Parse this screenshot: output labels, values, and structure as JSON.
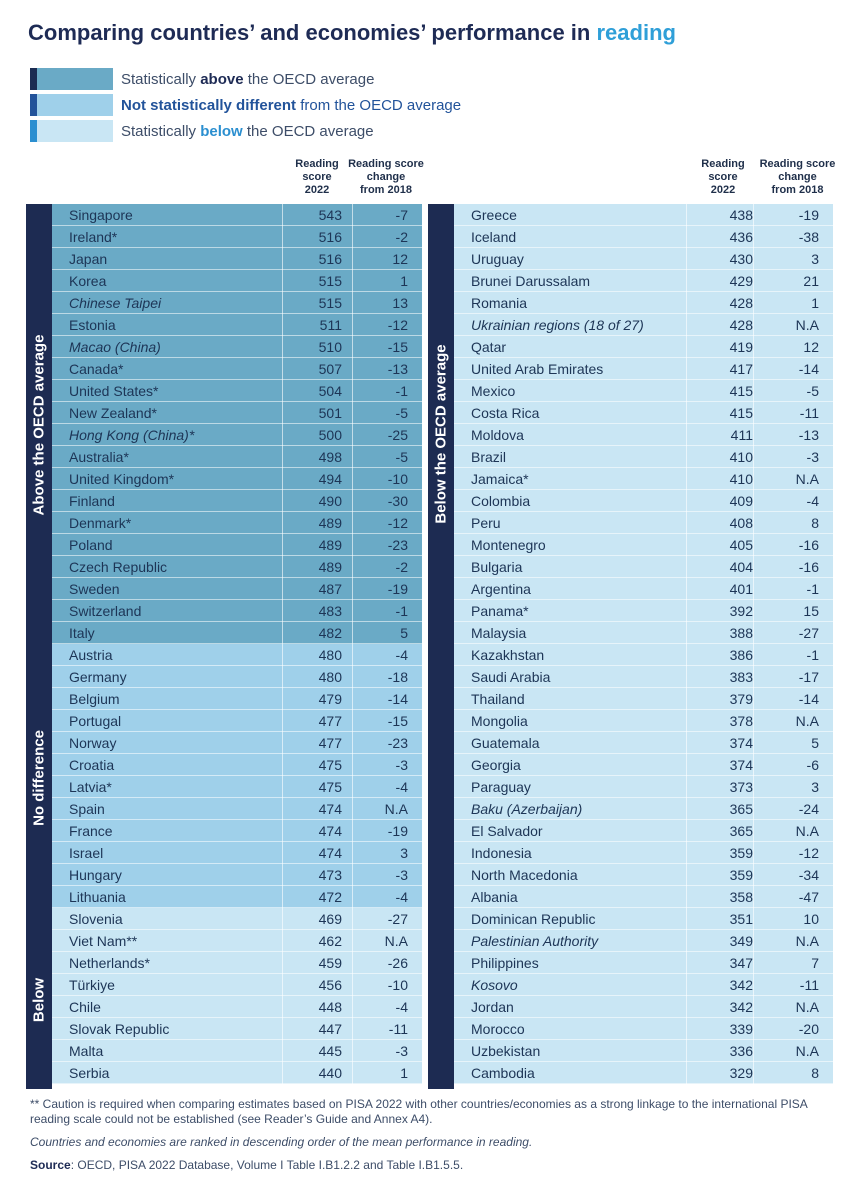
{
  "title": {
    "main": "Comparing countries’ and economies’ performance in",
    "highlight": "reading"
  },
  "legend": {
    "above": {
      "pre": "Statistically ",
      "bold": "above",
      "post": " the OECD average"
    },
    "nd": {
      "bold": "Not statistically different",
      "post": " from the OECD average"
    },
    "below": {
      "pre": "Statistically ",
      "bold": "below",
      "post": " the OECD average"
    }
  },
  "column_headers": {
    "score": [
      "Reading",
      "score",
      "2022"
    ],
    "change": [
      "Reading score",
      "change",
      "from 2018"
    ]
  },
  "band_labels": {
    "left_above": "Above the OECD average",
    "left_nd": "No difference",
    "left_below": "Below",
    "right_below": "Below the OECD average"
  },
  "left_table": [
    {
      "country": "Singapore",
      "score": "543",
      "change": "-7",
      "group": "above",
      "italic": false
    },
    {
      "country": "Ireland*",
      "score": "516",
      "change": "-2",
      "group": "above",
      "italic": false
    },
    {
      "country": "Japan",
      "score": "516",
      "change": "12",
      "group": "above",
      "italic": false
    },
    {
      "country": "Korea",
      "score": "515",
      "change": "1",
      "group": "above",
      "italic": false
    },
    {
      "country": "Chinese Taipei",
      "score": "515",
      "change": "13",
      "group": "above",
      "italic": true
    },
    {
      "country": "Estonia",
      "score": "511",
      "change": "-12",
      "group": "above",
      "italic": false
    },
    {
      "country": "Macao (China)",
      "score": "510",
      "change": "-15",
      "group": "above",
      "italic": true
    },
    {
      "country": "Canada*",
      "score": "507",
      "change": "-13",
      "group": "above",
      "italic": false
    },
    {
      "country": "United States*",
      "score": "504",
      "change": "-1",
      "group": "above",
      "italic": false
    },
    {
      "country": "New Zealand*",
      "score": "501",
      "change": "-5",
      "group": "above",
      "italic": false
    },
    {
      "country": "Hong Kong (China)*",
      "score": "500",
      "change": "-25",
      "group": "above",
      "italic": true
    },
    {
      "country": "Australia*",
      "score": "498",
      "change": "-5",
      "group": "above",
      "italic": false
    },
    {
      "country": "United Kingdom*",
      "score": "494",
      "change": "-10",
      "group": "above",
      "italic": false
    },
    {
      "country": "Finland",
      "score": "490",
      "change": "-30",
      "group": "above",
      "italic": false
    },
    {
      "country": "Denmark*",
      "score": "489",
      "change": "-12",
      "group": "above",
      "italic": false
    },
    {
      "country": "Poland",
      "score": "489",
      "change": "-23",
      "group": "above",
      "italic": false
    },
    {
      "country": "Czech Republic",
      "score": "489",
      "change": "-2",
      "group": "above",
      "italic": false
    },
    {
      "country": "Sweden",
      "score": "487",
      "change": "-19",
      "group": "above",
      "italic": false
    },
    {
      "country": "Switzerland",
      "score": "483",
      "change": "-1",
      "group": "above",
      "italic": false
    },
    {
      "country": "Italy",
      "score": "482",
      "change": "5",
      "group": "above",
      "italic": false
    },
    {
      "country": "Austria",
      "score": "480",
      "change": "-4",
      "group": "nd",
      "italic": false
    },
    {
      "country": "Germany",
      "score": "480",
      "change": "-18",
      "group": "nd",
      "italic": false
    },
    {
      "country": "Belgium",
      "score": "479",
      "change": "-14",
      "group": "nd",
      "italic": false
    },
    {
      "country": "Portugal",
      "score": "477",
      "change": "-15",
      "group": "nd",
      "italic": false
    },
    {
      "country": "Norway",
      "score": "477",
      "change": "-23",
      "group": "nd",
      "italic": false
    },
    {
      "country": "Croatia",
      "score": "475",
      "change": "-3",
      "group": "nd",
      "italic": false
    },
    {
      "country": "Latvia*",
      "score": "475",
      "change": "-4",
      "group": "nd",
      "italic": false
    },
    {
      "country": "Spain",
      "score": "474",
      "change": "N.A",
      "group": "nd",
      "italic": false
    },
    {
      "country": "France",
      "score": "474",
      "change": "-19",
      "group": "nd",
      "italic": false
    },
    {
      "country": "Israel",
      "score": "474",
      "change": "3",
      "group": "nd",
      "italic": false
    },
    {
      "country": "Hungary",
      "score": "473",
      "change": "-3",
      "group": "nd",
      "italic": false
    },
    {
      "country": "Lithuania",
      "score": "472",
      "change": "-4",
      "group": "nd",
      "italic": false
    },
    {
      "country": "Slovenia",
      "score": "469",
      "change": "-27",
      "group": "below",
      "italic": false
    },
    {
      "country": "Viet Nam**",
      "score": "462",
      "change": "N.A",
      "group": "below",
      "italic": false
    },
    {
      "country": "Netherlands*",
      "score": "459",
      "change": "-26",
      "group": "below",
      "italic": false
    },
    {
      "country": "Türkiye",
      "score": "456",
      "change": "-10",
      "group": "below",
      "italic": false
    },
    {
      "country": "Chile",
      "score": "448",
      "change": "-4",
      "group": "below",
      "italic": false
    },
    {
      "country": "Slovak Republic",
      "score": "447",
      "change": "-11",
      "group": "below",
      "italic": false
    },
    {
      "country": "Malta",
      "score": "445",
      "change": "-3",
      "group": "below",
      "italic": false
    },
    {
      "country": "Serbia",
      "score": "440",
      "change": "1",
      "group": "below",
      "italic": false
    }
  ],
  "right_table": [
    {
      "country": "Greece",
      "score": "438",
      "change": "-19",
      "group": "below",
      "italic": false
    },
    {
      "country": "Iceland",
      "score": "436",
      "change": "-38",
      "group": "below",
      "italic": false
    },
    {
      "country": "Uruguay",
      "score": "430",
      "change": "3",
      "group": "below",
      "italic": false
    },
    {
      "country": "Brunei Darussalam",
      "score": "429",
      "change": "21",
      "group": "below",
      "italic": false
    },
    {
      "country": "Romania",
      "score": "428",
      "change": "1",
      "group": "below",
      "italic": false
    },
    {
      "country": "Ukrainian regions (18 of 27)",
      "score": "428",
      "change": "N.A",
      "group": "below",
      "italic": true
    },
    {
      "country": "Qatar",
      "score": "419",
      "change": "12",
      "group": "below",
      "italic": false
    },
    {
      "country": "United Arab Emirates",
      "score": "417",
      "change": "-14",
      "group": "below",
      "italic": false
    },
    {
      "country": "Mexico",
      "score": "415",
      "change": "-5",
      "group": "below",
      "italic": false
    },
    {
      "country": "Costa Rica",
      "score": "415",
      "change": "-11",
      "group": "below",
      "italic": false
    },
    {
      "country": "Moldova",
      "score": "411",
      "change": "-13",
      "group": "below",
      "italic": false
    },
    {
      "country": "Brazil",
      "score": "410",
      "change": "-3",
      "group": "below",
      "italic": false
    },
    {
      "country": "Jamaica*",
      "score": "410",
      "change": "N.A",
      "group": "below",
      "italic": false
    },
    {
      "country": "Colombia",
      "score": "409",
      "change": "-4",
      "group": "below",
      "italic": false
    },
    {
      "country": "Peru",
      "score": "408",
      "change": "8",
      "group": "below",
      "italic": false
    },
    {
      "country": "Montenegro",
      "score": "405",
      "change": "-16",
      "group": "below",
      "italic": false
    },
    {
      "country": "Bulgaria",
      "score": "404",
      "change": "-16",
      "group": "below",
      "italic": false
    },
    {
      "country": "Argentina",
      "score": "401",
      "change": "-1",
      "group": "below",
      "italic": false
    },
    {
      "country": "Panama*",
      "score": "392",
      "change": "15",
      "group": "below",
      "italic": false
    },
    {
      "country": "Malaysia",
      "score": "388",
      "change": "-27",
      "group": "below",
      "italic": false
    },
    {
      "country": "Kazakhstan",
      "score": "386",
      "change": "-1",
      "group": "below",
      "italic": false
    },
    {
      "country": "Saudi Arabia",
      "score": "383",
      "change": "-17",
      "group": "below",
      "italic": false
    },
    {
      "country": "Thailand",
      "score": "379",
      "change": "-14",
      "group": "below",
      "italic": false
    },
    {
      "country": "Mongolia",
      "score": "378",
      "change": "N.A",
      "group": "below",
      "italic": false
    },
    {
      "country": "Guatemala",
      "score": "374",
      "change": "5",
      "group": "below",
      "italic": false
    },
    {
      "country": "Georgia",
      "score": "374",
      "change": "-6",
      "group": "below",
      "italic": false
    },
    {
      "country": "Paraguay",
      "score": "373",
      "change": "3",
      "group": "below",
      "italic": false
    },
    {
      "country": "Baku (Azerbaijan)",
      "score": "365",
      "change": "-24",
      "group": "below",
      "italic": true
    },
    {
      "country": "El Salvador",
      "score": "365",
      "change": "N.A",
      "group": "below",
      "italic": false
    },
    {
      "country": "Indonesia",
      "score": "359",
      "change": "-12",
      "group": "below",
      "italic": false
    },
    {
      "country": "North Macedonia",
      "score": "359",
      "change": "-34",
      "group": "below",
      "italic": false
    },
    {
      "country": "Albania",
      "score": "358",
      "change": "-47",
      "group": "below",
      "italic": false
    },
    {
      "country": "Dominican Republic",
      "score": "351",
      "change": "10",
      "group": "below",
      "italic": false
    },
    {
      "country": "Palestinian Authority",
      "score": "349",
      "change": "N.A",
      "group": "below",
      "italic": true
    },
    {
      "country": "Philippines",
      "score": "347",
      "change": "7",
      "group": "below",
      "italic": false
    },
    {
      "country": "Kosovo",
      "score": "342",
      "change": "-11",
      "group": "below",
      "italic": true
    },
    {
      "country": "Jordan",
      "score": "342",
      "change": "N.A",
      "group": "below",
      "italic": false
    },
    {
      "country": "Morocco",
      "score": "339",
      "change": "-20",
      "group": "below",
      "italic": false
    },
    {
      "country": "Uzbekistan",
      "score": "336",
      "change": "N.A",
      "group": "below",
      "italic": false
    },
    {
      "country": "Cambodia",
      "score": "329",
      "change": "8",
      "group": "below",
      "italic": false
    }
  ],
  "notes": {
    "caution": "** Caution is required when comparing estimates based on PISA 2022 with other countries/economies as a strong linkage to the international PISA reading scale could not be established (see Reader’s Guide and Annex A4).",
    "ranking": "Countries and economies are ranked in descending order of the mean performance in reading.",
    "source_label": "Source",
    "source_text": ": OECD, PISA 2022 Database, Volume I Table I.B1.2.2 and Table I.B1.5.5."
  },
  "colors": {
    "above": "#6aaac6",
    "not_different": "#9fd0ea",
    "below": "#c9e6f4",
    "band": "#1d2b52",
    "title_highlight": "#2f9fd8"
  }
}
